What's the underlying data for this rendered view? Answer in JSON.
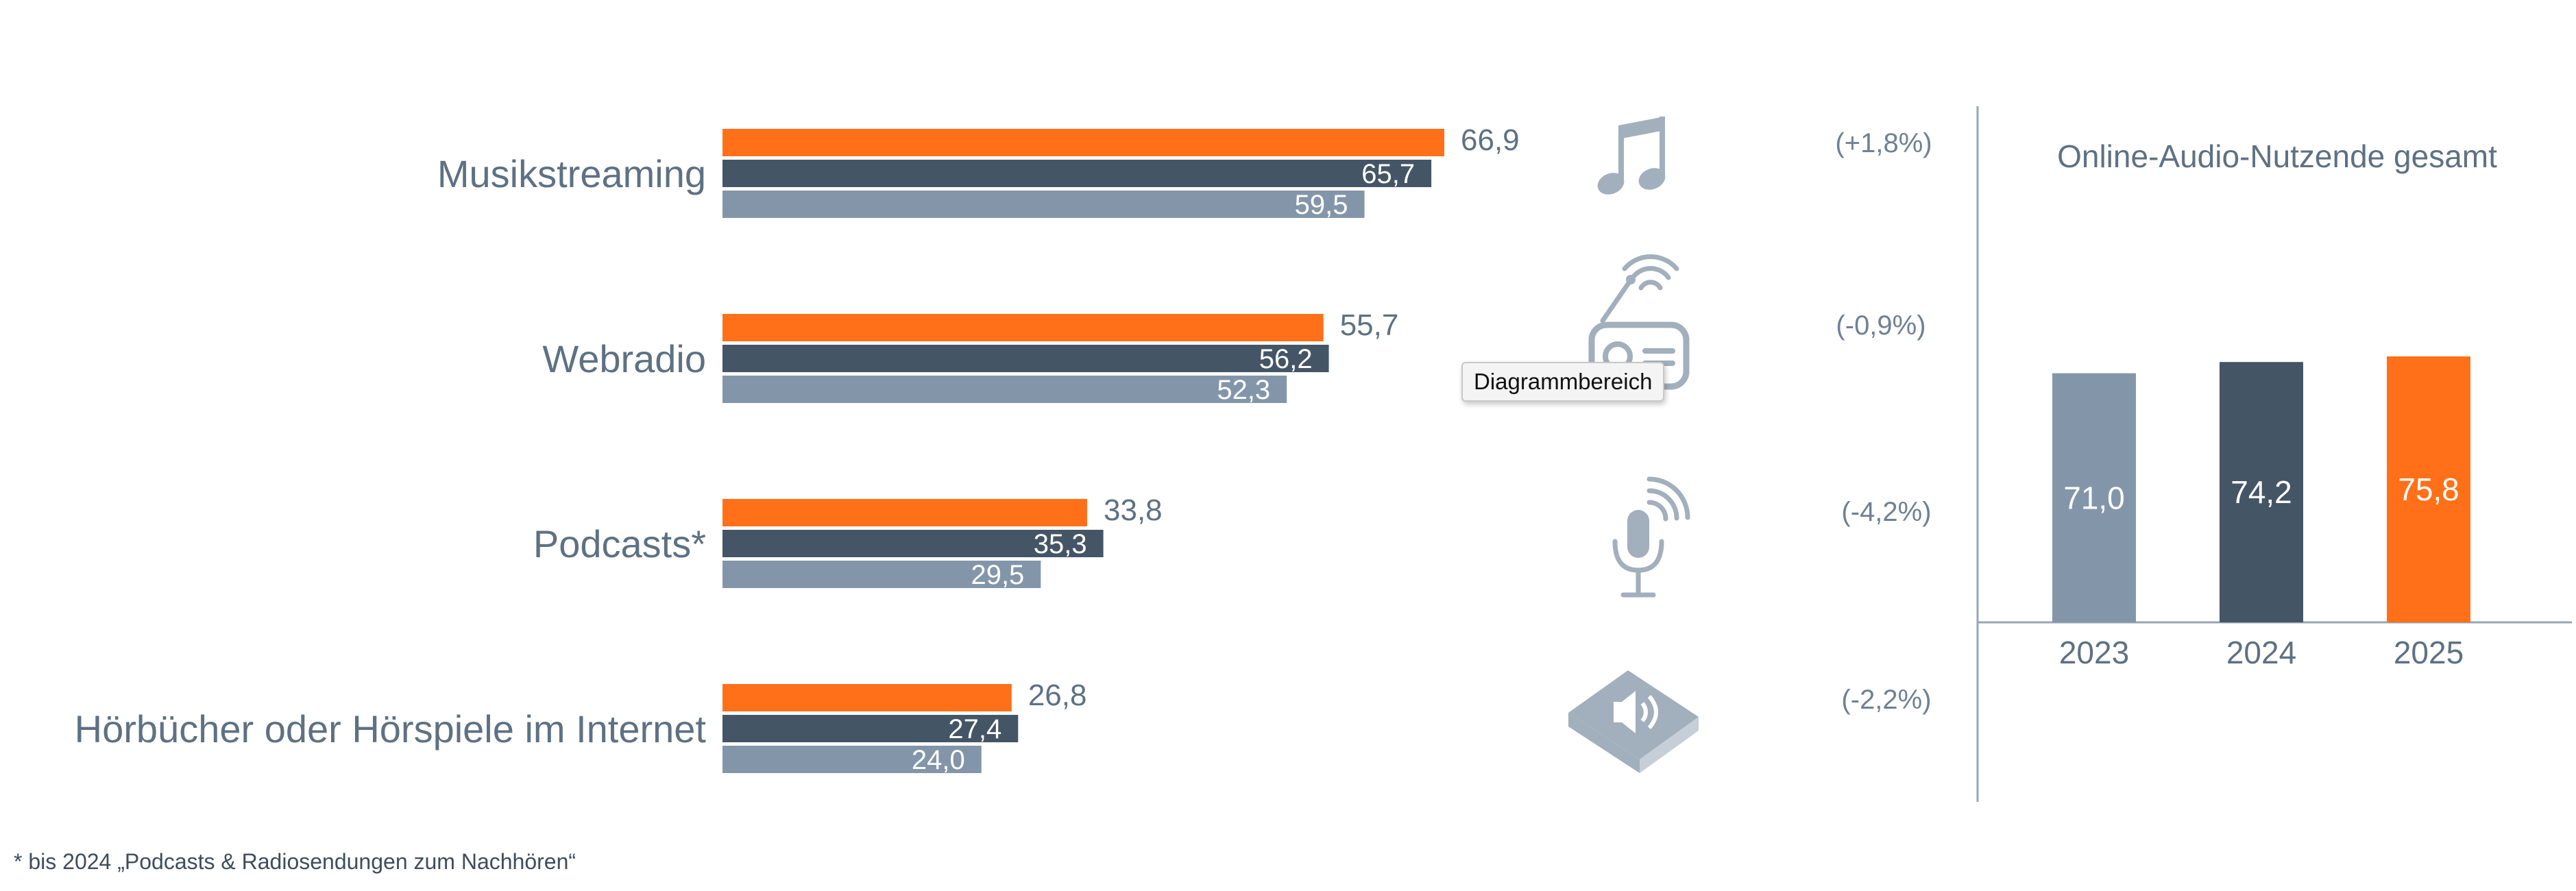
{
  "colors": {
    "y2023": "#8396a9",
    "y2024": "#445566",
    "y2025": "#ff7018",
    "text": "#5e7183",
    "icon": "#a2afbd",
    "axis": "#9aa6b2"
  },
  "chart_data": [
    {
      "type": "bar",
      "orientation": "horizontal",
      "categories": [
        "Musikstreaming",
        "Webradio",
        "Podcasts*",
        "Hörbücher oder Hörspiele im Internet"
      ],
      "series": [
        {
          "key": "y2025",
          "values": [
            66.9,
            55.7,
            33.8,
            26.8
          ],
          "labels": [
            "66,9",
            "55,7",
            "33,8",
            "26,8"
          ]
        },
        {
          "key": "y2024",
          "values": [
            65.7,
            56.2,
            35.3,
            27.4
          ],
          "labels": [
            "65,7",
            "56,2",
            "35,3",
            "27,4"
          ]
        },
        {
          "key": "y2023",
          "values": [
            59.5,
            52.3,
            29.5,
            24.0
          ],
          "labels": [
            "59,5",
            "52,3",
            "29,5",
            "24,0"
          ]
        }
      ],
      "changes": [
        "(+1,8%)",
        "(-0,9%)",
        "(-4,2%)",
        "(-2,2%)"
      ],
      "icons": [
        "music-note-icon",
        "radio-icon",
        "microphone-icon",
        "audiobook-icon"
      ],
      "xlim": [
        0,
        100
      ],
      "grid": false
    },
    {
      "type": "bar",
      "orientation": "vertical",
      "title": "Online-Audio-Nutzende gesamt",
      "categories": [
        "2023",
        "2024",
        "2025"
      ],
      "values": [
        71.0,
        74.2,
        75.8
      ],
      "labels": [
        "71,0",
        "74,2",
        "75,8"
      ],
      "colors": [
        "#8396a9",
        "#445566",
        "#ff7018"
      ],
      "ylim": [
        0,
        100
      ],
      "grid": false
    }
  ],
  "tooltip": "Diagrammbereich",
  "footnote": "* bis 2024 „Podcasts & Radiosendungen zum Nachhören“"
}
